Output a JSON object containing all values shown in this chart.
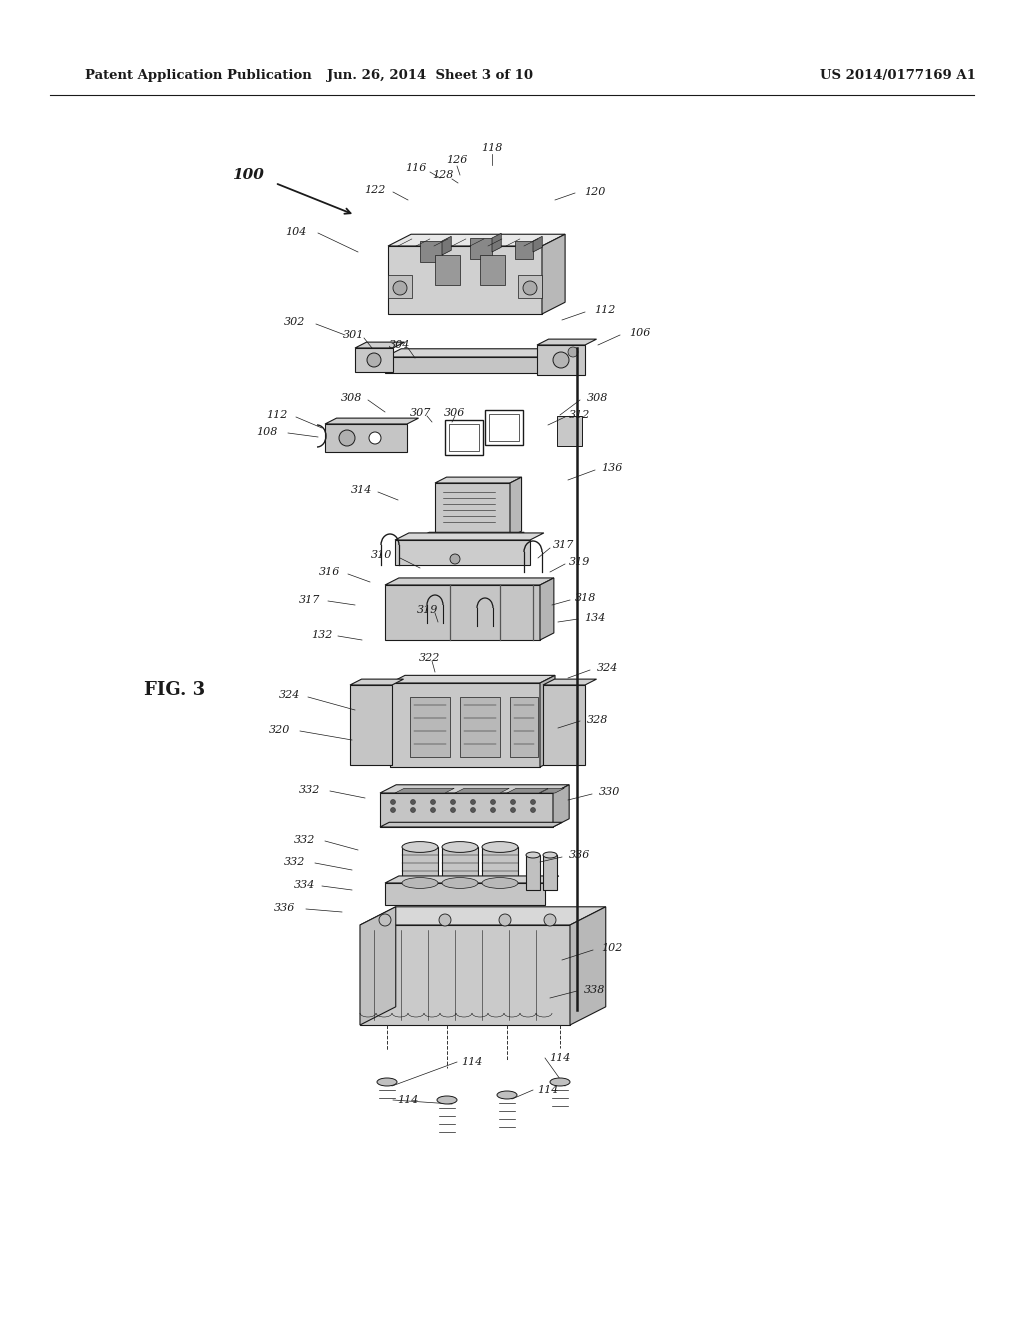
{
  "title_left": "Patent Application Publication",
  "title_center": "Jun. 26, 2014  Sheet 3 of 10",
  "title_right": "US 2014/0177169 A1",
  "fig_label": "FIG. 3",
  "bg_color": "#ffffff",
  "line_color": "#1a1a1a",
  "label_color": "#2a2a2a",
  "header_fontsize": 9.5,
  "label_fontsize": 8,
  "fig_label_fontsize": 13
}
